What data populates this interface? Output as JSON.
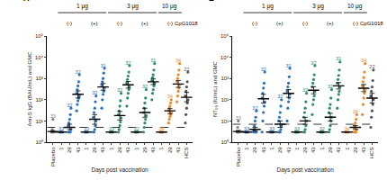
{
  "chart_data": [
    {
      "type": "scatter",
      "panel": "A",
      "y_label": "Anti-S IgG (BAU/mL) and GMC",
      "x_label": "Days post vaccination",
      "categories": [
        "Placebo",
        "1",
        "29",
        "43",
        "1",
        "29",
        "43",
        "1",
        "29",
        "43",
        "1",
        "29",
        "43",
        "1",
        "29",
        "43",
        "HCS"
      ],
      "dose": [
        null,
        "1 μg",
        "1 μg",
        "1 μg",
        "1 μg",
        "1 μg",
        "1 μg",
        "3 μg",
        "3 μg",
        "3 μg",
        "3 μg",
        "3 μg",
        "3 μg",
        "10 μg",
        "10 μg",
        "10 μg",
        null
      ],
      "adjuvant": [
        null,
        "(-)",
        "(-)",
        "(-)",
        "(+)",
        "(+)",
        "(+)",
        "(-)",
        "(-)",
        "(-)",
        "(+)",
        "(+)",
        "(+)",
        "(-)",
        "(-)",
        "(-)",
        null
      ],
      "adjuvant_label": "CpG1018",
      "colors": [
        "#808080",
        "#2e6fba",
        "#2e6fba",
        "#2e6fba",
        "#2e6fba",
        "#2e6fba",
        "#2e6fba",
        "#2e8b6a",
        "#2e8b6a",
        "#2e8b6a",
        "#2e8b6a",
        "#2e8b6a",
        "#2e8b6a",
        "#e8892b",
        "#e8892b",
        "#e8892b",
        "#555555"
      ],
      "points": [
        [
          3,
          3,
          3,
          3,
          3,
          3,
          4,
          12
        ],
        [
          3,
          3,
          3,
          3,
          3,
          3
        ],
        [
          3,
          3,
          3,
          3,
          4,
          6,
          8,
          12,
          20,
          40
        ],
        [
          30,
          60,
          90,
          120,
          150,
          200,
          300,
          450,
          700,
          1500
        ],
        [
          3,
          3,
          3,
          3,
          3,
          3
        ],
        [
          3,
          3,
          4,
          6,
          10,
          15,
          25,
          40,
          80,
          150
        ],
        [
          40,
          100,
          180,
          250,
          350,
          500,
          700,
          1000,
          1800,
          3000
        ],
        [
          3,
          3,
          3,
          3,
          3,
          3
        ],
        [
          3,
          4,
          6,
          9,
          14,
          20,
          30,
          50,
          90,
          200
        ],
        [
          50,
          120,
          200,
          300,
          400,
          600,
          900,
          1300,
          2000,
          4000
        ],
        [
          3,
          3,
          3,
          3,
          3,
          3
        ],
        [
          3,
          5,
          8,
          12,
          18,
          25,
          40,
          70,
          120,
          300
        ],
        [
          100,
          200,
          300,
          450,
          600,
          800,
          1100,
          1500,
          2500,
          5000
        ],
        [
          3,
          3,
          3,
          3,
          3,
          3
        ],
        [
          8,
          12,
          16,
          20,
          25,
          30,
          40,
          50,
          70,
          100
        ],
        [
          80,
          150,
          250,
          350,
          500,
          700,
          1000,
          1500,
          2500,
          5000
        ],
        [
          8,
          20,
          40,
          70,
          100,
          150,
          250,
          400,
          700,
          2000
        ]
      ],
      "gmc": [
        3.2,
        3,
        5,
        180,
        3,
        12,
        400,
        3,
        18,
        500,
        3,
        25,
        700,
        3,
        30,
        550,
        130
      ],
      "ci_low": [
        3,
        3,
        4,
        120,
        3,
        7,
        280,
        3,
        11,
        350,
        3,
        15,
        520,
        3,
        22,
        380,
        80
      ],
      "ci_high": [
        3.5,
        3,
        7,
        260,
        3,
        20,
        580,
        3,
        28,
        720,
        3,
        40,
        950,
        3,
        38,
        800,
        220
      ],
      "n": [
        33,
        33,
        32,
        32,
        33,
        32,
        31,
        33,
        32,
        32,
        32,
        32,
        31,
        34,
        34,
        34,
        22
      ],
      "reference_line": 5,
      "log": "y",
      "ylim": [
        1,
        100000
      ],
      "yticks": [
        {
          "value": 1,
          "label": "10⁰"
        },
        {
          "value": 10,
          "label": "10¹"
        },
        {
          "value": 100,
          "label": "10²"
        },
        {
          "value": 1000,
          "label": "10³"
        },
        {
          "value": 10000,
          "label": "10⁴"
        },
        {
          "value": 100000,
          "label": "10⁵"
        }
      ]
    },
    {
      "type": "scatter",
      "panel": "B",
      "y_label": "NT₅₀ (IU/mL) and GMC",
      "x_label": "Days post vaccination",
      "categories": [
        "Placebo",
        "1",
        "29",
        "43",
        "1",
        "29",
        "43",
        "1",
        "29",
        "43",
        "1",
        "29",
        "43",
        "1",
        "29",
        "43",
        "HCS"
      ],
      "dose": [
        null,
        "1 μg",
        "1 μg",
        "1 μg",
        "1 μg",
        "1 μg",
        "1 μg",
        "3 μg",
        "3 μg",
        "3 μg",
        "3 μg",
        "3 μg",
        "3 μg",
        "10 μg",
        "10 μg",
        "10 μg",
        null
      ],
      "adjuvant": [
        null,
        "(-)",
        "(-)",
        "(-)",
        "(+)",
        "(+)",
        "(+)",
        "(-)",
        "(-)",
        "(-)",
        "(+)",
        "(+)",
        "(+)",
        "(-)",
        "(-)",
        "(-)",
        null
      ],
      "adjuvant_label": "CpG1018",
      "colors": [
        "#808080",
        "#2e6fba",
        "#2e6fba",
        "#2e6fba",
        "#2e6fba",
        "#2e6fba",
        "#2e6fba",
        "#2e8b6a",
        "#2e8b6a",
        "#2e8b6a",
        "#2e8b6a",
        "#2e8b6a",
        "#2e8b6a",
        "#e8892b",
        "#e8892b",
        "#e8892b",
        "#555555"
      ],
      "points": [
        [
          3,
          3,
          3,
          3,
          3,
          3,
          5,
          10
        ],
        [
          3,
          3,
          3,
          3,
          3,
          3
        ],
        [
          3,
          3,
          3,
          3,
          3,
          4,
          6,
          10,
          15,
          30
        ],
        [
          3,
          10,
          25,
          50,
          80,
          120,
          200,
          350,
          600,
          2000
        ],
        [
          3,
          3,
          3,
          3,
          3,
          3
        ],
        [
          3,
          3,
          3,
          4,
          6,
          10,
          15,
          25,
          50,
          100
        ],
        [
          10,
          40,
          80,
          120,
          180,
          250,
          400,
          600,
          1200,
          3000
        ],
        [
          3,
          3,
          3,
          3,
          3,
          3
        ],
        [
          3,
          3,
          4,
          6,
          10,
          15,
          25,
          40,
          80,
          200
        ],
        [
          20,
          60,
          100,
          150,
          250,
          400,
          600,
          900,
          1500,
          4000
        ],
        [
          3,
          3,
          3,
          3,
          3,
          3
        ],
        [
          3,
          4,
          6,
          10,
          15,
          25,
          40,
          60,
          120,
          300
        ],
        [
          40,
          100,
          180,
          250,
          400,
          600,
          900,
          1400,
          2500,
          6000
        ],
        [
          3,
          3,
          3,
          3,
          3,
          3
        ],
        [
          3,
          3,
          3,
          3,
          4,
          5,
          6,
          8,
          12,
          20
        ],
        [
          20,
          60,
          120,
          200,
          300,
          450,
          700,
          1100,
          2000,
          5000
        ],
        [
          5,
          15,
          30,
          60,
          100,
          150,
          250,
          400,
          800,
          2500
        ]
      ],
      "gmc": [
        3.2,
        3,
        4,
        110,
        3,
        7,
        200,
        3,
        10,
        280,
        3,
        15,
        450,
        3,
        5,
        350,
        120
      ],
      "ci_low": [
        3,
        3,
        3.4,
        70,
        3,
        5,
        130,
        3,
        7,
        190,
        3,
        10,
        320,
        3,
        4,
        240,
        70
      ],
      "ci_high": [
        3.6,
        3,
        5,
        180,
        3,
        10,
        300,
        3,
        15,
        410,
        3,
        23,
        640,
        3,
        6,
        520,
        200
      ],
      "n": [
        33,
        33,
        32,
        32,
        33,
        32,
        31,
        33,
        32,
        32,
        32,
        32,
        31,
        34,
        34,
        34,
        22
      ],
      "reference_line": 7,
      "log": "y",
      "ylim": [
        1,
        100000
      ],
      "yticks": [
        {
          "value": 1,
          "label": "10⁰"
        },
        {
          "value": 10,
          "label": "10¹"
        },
        {
          "value": 100,
          "label": "10²"
        },
        {
          "value": 1000,
          "label": "10³"
        },
        {
          "value": 10000,
          "label": "10⁴"
        },
        {
          "value": 100000,
          "label": "10⁵"
        }
      ]
    }
  ]
}
